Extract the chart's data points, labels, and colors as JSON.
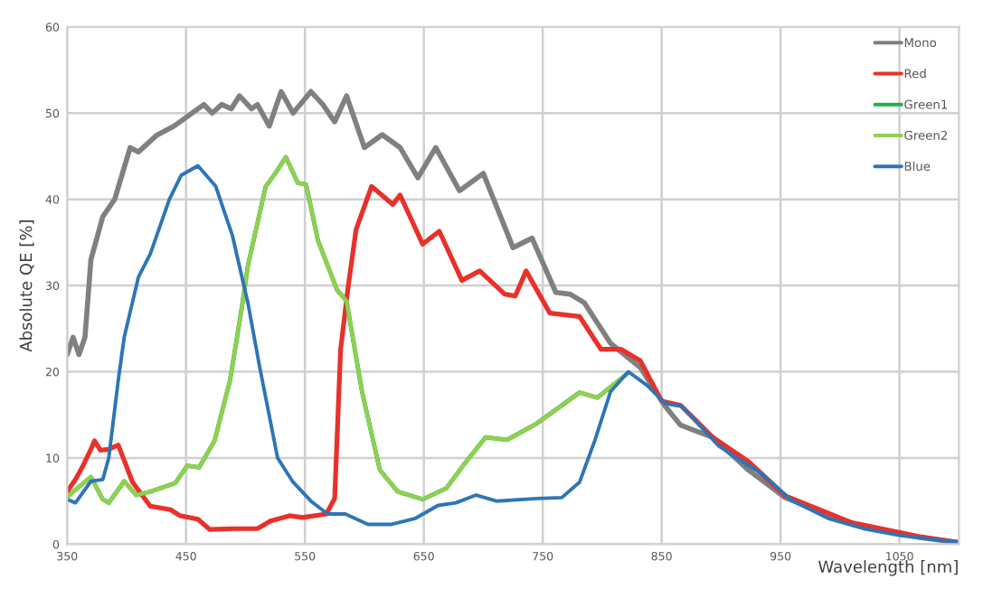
{
  "chart_data": {
    "type": "line",
    "xlabel": "Wavelength [nm]",
    "ylabel": "Absolute QE [%]",
    "xlim": [
      350,
      1100
    ],
    "xticks": [
      350,
      450,
      550,
      650,
      750,
      850,
      950,
      1050
    ],
    "ylim": [
      0,
      60
    ],
    "yticks": [
      0,
      10,
      20,
      30,
      40,
      50,
      60
    ],
    "grid": true,
    "legend": "top right",
    "line_style": "solid",
    "marker": "none",
    "series": [
      {
        "name": "Mono",
        "color": "#808080",
        "x": [
          350,
          355,
          360,
          365,
          370,
          380,
          390,
          403,
          410,
          425,
          440,
          450,
          465,
          472,
          480,
          488,
          495,
          505,
          510,
          520,
          530,
          540,
          555,
          565,
          575,
          585,
          600,
          615,
          630,
          645,
          660,
          680,
          700,
          725,
          741,
          761,
          773,
          785,
          807,
          832,
          853,
          866,
          893,
          923,
          954,
          1010,
          1066,
          1100
        ],
        "values": [
          22,
          24,
          22,
          24,
          33,
          38,
          40,
          46,
          45.5,
          47.4,
          48.5,
          49.5,
          51,
          50,
          51,
          50.5,
          52,
          50.5,
          51,
          48.5,
          52.5,
          50,
          52.5,
          51,
          49,
          52,
          46,
          47.5,
          46,
          42.5,
          46,
          41,
          43,
          34.4,
          35.5,
          29.2,
          29,
          28,
          23.3,
          20.5,
          16,
          13.8,
          12.4,
          8.6,
          5.4,
          2.3,
          0.8,
          0.2
        ]
      },
      {
        "name": "Red",
        "color": "#e8312a",
        "x": [
          350,
          357,
          363,
          370,
          373,
          378,
          385,
          393,
          405,
          420,
          437,
          445,
          460,
          470,
          490,
          510,
          521,
          537,
          548,
          568,
          575,
          580,
          586,
          593,
          606,
          624,
          630,
          649,
          663,
          682,
          697,
          718,
          727,
          736,
          756,
          781,
          799,
          816,
          832,
          850,
          866,
          893,
          923,
          954,
          1010,
          1066,
          1100
        ],
        "values": [
          6.1,
          7.5,
          9,
          11,
          12,
          10.9,
          11,
          11.5,
          7.2,
          4.4,
          4,
          3.3,
          2.9,
          1.7,
          1.8,
          1.8,
          2.7,
          3.3,
          3.1,
          3.5,
          5.3,
          22.6,
          29.5,
          36.5,
          41.5,
          39.4,
          40.5,
          34.8,
          36.3,
          30.6,
          31.7,
          29,
          28.8,
          31.7,
          26.8,
          26.4,
          22.6,
          22.6,
          21.3,
          16.6,
          16.1,
          12.4,
          9.6,
          5.6,
          2.5,
          0.9,
          0.2
        ]
      },
      {
        "name": "Green1",
        "color": "#22b04b",
        "x": [
          350,
          370,
          380,
          385,
          398,
          408,
          420,
          441,
          451,
          461,
          474,
          487,
          497,
          502,
          517,
          524,
          534,
          544,
          551,
          561,
          577,
          585,
          598,
          613,
          628,
          649,
          669,
          684,
          702,
          720,
          745,
          761,
          781,
          796,
          822
        ],
        "values": [
          5.5,
          7.8,
          5.2,
          4.8,
          7.3,
          5.7,
          6.1,
          7.1,
          9.1,
          8.9,
          12,
          19,
          27.5,
          32.3,
          41.5,
          42.8,
          44.9,
          41.9,
          41.7,
          35.2,
          29.5,
          28.2,
          17.7,
          8.6,
          6.1,
          5.2,
          6.5,
          9.3,
          12.4,
          12.1,
          14,
          15.6,
          17.6,
          17,
          19.9
        ]
      },
      {
        "name": "Green2",
        "color": "#92d050",
        "x": [
          350,
          370,
          380,
          385,
          398,
          408,
          420,
          441,
          451,
          461,
          474,
          487,
          497,
          502,
          517,
          524,
          534,
          544,
          551,
          561,
          577,
          585,
          598,
          613,
          628,
          649,
          669,
          684,
          702,
          720,
          745,
          761,
          781,
          796,
          822
        ],
        "values": [
          5.5,
          7.8,
          5.2,
          4.8,
          7.3,
          5.7,
          6.1,
          7.1,
          9.1,
          8.9,
          12,
          19,
          27.5,
          32.3,
          41.5,
          42.8,
          44.9,
          41.9,
          41.7,
          35.2,
          29.5,
          28.2,
          17.7,
          8.6,
          6.1,
          5.2,
          6.5,
          9.3,
          12.4,
          12.1,
          14,
          15.6,
          17.6,
          17,
          19.9
        ]
      },
      {
        "name": "Blue",
        "color": "#2e75b6",
        "x": [
          350,
          357,
          370,
          380,
          385,
          393,
          398,
          410,
          420,
          436,
          446,
          460,
          475,
          489,
          502,
          512,
          527,
          540,
          555,
          569,
          584,
          603,
          623,
          643,
          662,
          677,
          694,
          711,
          745,
          766,
          781,
          794,
          807,
          822,
          838,
          853,
          867,
          877,
          898,
          913,
          934,
          959,
          990,
          1020,
          1051,
          1100
        ],
        "values": [
          5.2,
          4.8,
          7.3,
          7.5,
          10,
          19,
          24,
          31,
          33.7,
          40,
          42.8,
          43.9,
          41.5,
          35.8,
          28,
          20.5,
          10,
          7.2,
          5,
          3.5,
          3.5,
          2.3,
          2.3,
          3,
          4.5,
          4.8,
          5.7,
          5,
          5.3,
          5.4,
          7.2,
          12.1,
          17.7,
          20,
          18.4,
          16.3,
          16,
          14.5,
          11.4,
          10,
          8.2,
          5.1,
          3,
          1.8,
          1,
          0.2
        ]
      }
    ]
  }
}
